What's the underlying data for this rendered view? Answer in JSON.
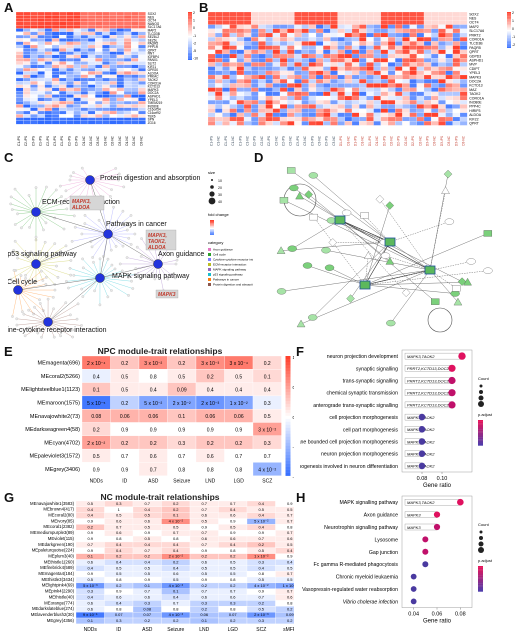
{
  "panels": {
    "A": "A",
    "B": "B",
    "C": "C",
    "D": "D",
    "E": "E",
    "F": "F",
    "G": "G",
    "H": "H"
  },
  "heatA": {
    "genes": [
      "SOX2",
      "NES",
      "OCT4",
      "NANOG",
      "SLC17A6",
      "MAP2",
      "TLCD3B",
      "SEZ6L2",
      "SEZ6L",
      "PAQR5",
      "PPP1R",
      "QPRT",
      "NNT",
      "IGFBP4",
      "PANX1",
      "SLIT2",
      "KIF21",
      "GPR20",
      "ALDOA",
      "PRKAC",
      "TAOK2",
      "CORO1A",
      "KCTD13",
      "MAPK3",
      "DOC2A",
      "ASPHD1",
      "YPEL3",
      "TMEM219",
      "INO80E",
      "C16orf54",
      "C16orf92",
      "TBX6",
      "SPN",
      "ZG16"
    ],
    "scale": [
      "2",
      "1",
      "0",
      "-1",
      "-2",
      "-5",
      "-10"
    ]
  },
  "heatB": {
    "genes": [
      "SOX2",
      "NES",
      "OCT4",
      "MAP2",
      "SLC17A6",
      "PRRT2",
      "CORO1A",
      "TLCD3B",
      "PAQR5",
      "QPRT",
      "GDPD3",
      "ASPHD1",
      "MVP",
      "CDIPT",
      "YPEL3",
      "MAPK3",
      "DOC2A",
      "KCTD13",
      "MAZ",
      "TAOK2",
      "CORO1A",
      "INO80E",
      "PPP4C",
      "HIRIP3",
      "ALDOA",
      "KIF22",
      "QPRT"
    ],
    "scale": [
      "2",
      "1",
      "0",
      "-1",
      "-2"
    ]
  },
  "networkC": {
    "nodes": [
      "Protein digestion and absorption",
      "ECM-receptor interaction",
      "Pathways in cancer",
      "p53 signaling pathway",
      "Axon guidance",
      "MAPK signaling pathway",
      "Cell cycle",
      "Cytokine-cytokine receptor interaction"
    ],
    "gene_labels": [
      "MAPK3, ALDOA",
      "MAPK3, TAOK2, ALDOA",
      "MAPK3"
    ],
    "legend_size_title": "size",
    "legend_sizes": [
      "10",
      "20",
      "30",
      "40"
    ],
    "legend_fc_title": "fold change",
    "legend_cat_title": "category",
    "legend_categories": [
      "Axon guidance",
      "Cell cycle",
      "Cytokine-cytokine receptor interaction",
      "ECM-receptor interaction",
      "MAPK signaling pathway",
      "p53 signaling pathway",
      "Pathways in cancer",
      "Protein digestion and absorption"
    ]
  },
  "heatE": {
    "title": "NPC module-trait relationships",
    "rows": [
      "MEmagenta(696)",
      "MEcoral2(5266)",
      "MElightsteelblue1(1123)",
      "MEmaroon(1575)",
      "MEnavajowhite2(73)",
      "MEdarkseagreen4(58)",
      "MEcyan(4702)",
      "MEpaleviolet3(1572)",
      "MEgrey(3406)"
    ],
    "cols": [
      "NDDs",
      "ID",
      "ASD",
      "Seizure",
      "LND",
      "LGD",
      "SCZ"
    ],
    "cells": [
      [
        "2 x 10⁻⁴",
        "0.2",
        "3 x 10⁻²",
        "0.2",
        "3 x 10⁻³",
        "3 x 10⁻⁴",
        "0.2"
      ],
      [
        "0.4",
        "0.5",
        "0.8",
        "0.5",
        "0.2",
        "0.5",
        "0.1"
      ],
      [
        "0.1",
        "0.5",
        "0.4",
        "0.09",
        "0.4",
        "0.4",
        "0.4"
      ],
      [
        "5 x 10⁻⁵",
        "0.2",
        "5 x 10⁻²",
        "2 x 10⁻²",
        "2 x 10⁻³",
        "1 x 10⁻²",
        "0.3"
      ],
      [
        "0.08",
        "0.06",
        "0.06",
        "0.1",
        "0.06",
        "0.06",
        "0.5"
      ],
      [
        "0.2",
        "0.9",
        "0.9",
        "0.9",
        "0.9",
        "0.9",
        "3 x 10⁻²"
      ],
      [
        "2 x 10⁻²",
        "0.2",
        "0.2",
        "0.3",
        "0.2",
        "0.2",
        "0.3"
      ],
      [
        "0.5",
        "0.7",
        "0.6",
        "0.7",
        "0.6",
        "0.7",
        "0.7"
      ],
      [
        "0.9",
        "0.9",
        "0.7",
        "0.8",
        "0.8",
        "0.8",
        "4 x 10⁻²"
      ]
    ],
    "corr": [
      [
        0.7,
        0.3,
        0.6,
        0.3,
        0.6,
        0.7,
        0.2
      ],
      [
        -0.1,
        0.1,
        0.0,
        0.1,
        0.3,
        0.1,
        0.2
      ],
      [
        0.3,
        0.1,
        0.1,
        0.3,
        0.1,
        0.1,
        0.1
      ],
      [
        -0.9,
        -0.3,
        -0.6,
        -0.6,
        -0.7,
        -0.6,
        -0.1
      ],
      [
        0.4,
        0.4,
        0.4,
        0.3,
        0.4,
        0.4,
        0.1
      ],
      [
        0.2,
        0.0,
        0.0,
        0.0,
        0.0,
        0.0,
        0.5
      ],
      [
        0.5,
        0.3,
        0.3,
        0.2,
        0.3,
        0.3,
        0.2
      ],
      [
        0.1,
        0.0,
        0.1,
        0.0,
        0.1,
        0.0,
        0.0
      ],
      [
        0.0,
        0.0,
        0.1,
        0.0,
        0.0,
        0.0,
        -0.5
      ]
    ],
    "scale": [
      "1",
      "0.5",
      "0",
      "-0.5",
      "-1"
    ]
  },
  "dotF": {
    "terms": [
      "neuron projection development",
      "synaptic signalling",
      "trans-synaptic signalling",
      "chemical synaptic transmission",
      "anterograde trans-synaptic signalling",
      "cell projection morphogenesis",
      "cell part morphogenesis",
      "plasma membrane bounded cell projection morphogenesis",
      "neuron projection morphogenesis",
      "cell morphogenesis involved in neuron differentiation"
    ],
    "genes": [
      "MAPK3,TAOK2",
      "PRRT2,KCTD13,DOC2A",
      "PRRT2,KCTD13,DOC2A",
      "PRRT2,KCTD13,DOC2A",
      "PRRT2,KCTD13,DOC2A",
      "MAPK3,TAOK2",
      "MAPK3,TAOK2",
      "MAPK3,TAOK2",
      "MAPK3,TAOK2",
      "MAPK3,TAOK2"
    ],
    "ratio": [
      0.12,
      0.11,
      0.11,
      0.11,
      0.11,
      0.08,
      0.08,
      0.08,
      0.08,
      0.08
    ],
    "xticks": [
      "0.08",
      "0.10"
    ],
    "xlabel": "Gene ratio",
    "count_title": "Count",
    "padj_title": "p.adjust"
  },
  "heatG": {
    "title": "NC module-trait relationships",
    "rows": [
      "MEnavajowhite1(3583)",
      "MEbrown4(417)",
      "MEcoral2(80)",
      "MEivory(85)",
      "MEcoral1(2382)",
      "MEmediumpurple3(89)",
      "MEviolet(115)",
      "MEdarkgreen(190)",
      "MEpaleturquoise(224)",
      "MEplum3(40)",
      "MEthistle1(260)",
      "MEfirebrick4(589)",
      "MEmagenta4(184)",
      "MEthistle3(3434)",
      "MElightpink4(69)",
      "MEpink4(2290)",
      "MEthistle(40)",
      "MEorange(774)",
      "MEdarkslateblue(274)",
      "MElavenderblush2(30)",
      "MEgrey(4356)"
    ],
    "cols": [
      "NDDs",
      "ID",
      "ASD",
      "Seizure",
      "LND",
      "LGD",
      "SCZ",
      "sMFR"
    ],
    "cells": [
      [
        "0.5",
        "0.3",
        "0.7",
        "0.2",
        "0.7",
        "0.7",
        "0.4",
        "0.9"
      ],
      [
        "0.4",
        "1",
        "0.4",
        "0.2",
        "0.7",
        "0.4",
        "0.5",
        "0.5"
      ],
      [
        "0.4",
        "0.5",
        "0.5",
        "0.1",
        "0.6",
        "0.6",
        "0.4",
        "0.7"
      ],
      [
        "0.9",
        "0.6",
        "0.6",
        "4 x 10⁻²",
        "0.5",
        "0.9",
        "5 x 10⁻²",
        "0.7"
      ],
      [
        "0.2",
        "0.7",
        "0.5",
        "0.5",
        "0.9",
        "0.5",
        "0.4",
        "0.8"
      ],
      [
        "0.9",
        "0.6",
        "0.9",
        "0.7",
        "0.7",
        "0.9",
        "0.9",
        "0.7"
      ],
      [
        "0.9",
        "0.8",
        "0.5",
        "0.8",
        "0.6",
        "0.6",
        "0.7",
        "0.6"
      ],
      [
        "0.7",
        "0.4",
        "0.4",
        "0.4",
        "0.7",
        "0.4",
        "0.2",
        "0.5"
      ],
      [
        "0.9",
        "0.4",
        "0.7",
        "0.4",
        "0.9",
        "0.8",
        "0.5",
        "0.4"
      ],
      [
        "0.1",
        "0.2",
        "0.2",
        "2 x 10⁻²",
        "0.2",
        "0.2",
        "1 x 10⁻²",
        "0.9"
      ],
      [
        "0.6",
        "0.4",
        "0.4",
        "0.2",
        "0.6",
        "0.5",
        "0.3",
        "0.4"
      ],
      [
        "0.4",
        "0.5",
        "0.5",
        "0.4",
        "0.5",
        "0.5",
        "0.4",
        "0.5"
      ],
      [
        "0.9",
        "0.5",
        "0.5",
        "0.6",
        "0.5",
        "0.5",
        "0.8",
        "0.7"
      ],
      [
        "0.5",
        "0.8",
        "0.9",
        "0.5",
        "0.9",
        "0.8",
        "0.5",
        "0.5"
      ],
      [
        "5 x 10⁻³",
        "0.2",
        "0.1",
        "4 x 10⁻³",
        "0.2",
        "0.2",
        "4 x 10⁻²",
        "1 x 10⁻²"
      ],
      [
        "0.3",
        "0.9",
        "0.7",
        "0.1",
        "0.7",
        "0.7",
        "0.9",
        "0.7"
      ],
      [
        "0.4",
        "0.6",
        "0.6",
        "0.4",
        "0.6",
        "0.6",
        "0.7",
        "0.6"
      ],
      [
        "0.6",
        "0.4",
        "0.3",
        "0.7",
        "0.3",
        "0.3",
        "0.2",
        "0.8"
      ],
      [
        "0.6",
        "0.8",
        "0.08",
        "0.8",
        "0.2",
        "0.8",
        "0.5",
        "0.2"
      ],
      [
        "9 x 10⁻⁵",
        "0.07",
        "0.07",
        "4 x 10⁻³",
        "0.06",
        "0.07",
        "2 x 10⁻³",
        "0.09"
      ],
      [
        "0.1",
        "0.3",
        "0.2",
        "0.2",
        "0.1",
        "0.2",
        "0.3",
        "0.2"
      ]
    ],
    "corr": [
      [
        0.1,
        0.2,
        0.1,
        0.2,
        0.1,
        0.1,
        0.2,
        0.0
      ],
      [
        0.2,
        0.0,
        0.2,
        0.3,
        0.1,
        0.2,
        0.1,
        0.1
      ],
      [
        0.2,
        0.1,
        0.2,
        0.3,
        0.1,
        0.1,
        0.2,
        0.1
      ],
      [
        0.0,
        0.1,
        0.1,
        0.6,
        0.1,
        0.0,
        -0.5,
        0.1
      ],
      [
        0.3,
        0.1,
        0.1,
        0.1,
        0.0,
        0.1,
        0.2,
        0.0
      ],
      [
        0.0,
        0.1,
        0.0,
        0.1,
        0.1,
        0.0,
        0.0,
        0.1
      ],
      [
        0.0,
        0.0,
        0.1,
        0.0,
        0.1,
        0.1,
        0.1,
        0.1
      ],
      [
        0.1,
        0.2,
        0.2,
        0.2,
        0.1,
        0.2,
        0.3,
        0.1
      ],
      [
        0.0,
        0.2,
        0.1,
        0.2,
        0.0,
        0.0,
        0.1,
        0.2
      ],
      [
        0.4,
        0.3,
        0.3,
        0.6,
        0.3,
        0.3,
        0.6,
        0.0
      ],
      [
        -0.1,
        -0.2,
        -0.2,
        -0.3,
        -0.1,
        -0.1,
        -0.2,
        -0.2
      ],
      [
        -0.2,
        -0.1,
        -0.1,
        -0.2,
        -0.1,
        -0.1,
        -0.2,
        -0.1
      ],
      [
        0.0,
        -0.1,
        -0.1,
        -0.1,
        -0.1,
        -0.1,
        0.0,
        0.1
      ],
      [
        -0.1,
        0.0,
        0.0,
        -0.1,
        0.0,
        0.0,
        -0.1,
        -0.1
      ],
      [
        -0.7,
        -0.3,
        -0.4,
        -0.7,
        -0.3,
        -0.3,
        -0.5,
        -0.6
      ],
      [
        -0.2,
        0.0,
        -0.1,
        -0.4,
        -0.1,
        -0.1,
        0.0,
        0.1
      ],
      [
        -0.2,
        -0.1,
        -0.1,
        -0.2,
        -0.1,
        -0.1,
        -0.1,
        0.1
      ],
      [
        -0.1,
        -0.2,
        -0.3,
        -0.1,
        -0.3,
        -0.3,
        -0.3,
        0.0
      ],
      [
        -0.1,
        0.0,
        -0.4,
        0.0,
        -0.3,
        0.0,
        -0.2,
        -0.3
      ],
      [
        -0.9,
        -0.4,
        -0.4,
        -0.7,
        -0.4,
        -0.4,
        -0.7,
        -0.4
      ],
      [
        -0.4,
        -0.3,
        -0.3,
        -0.3,
        -0.4,
        -0.3,
        -0.3,
        -0.3
      ]
    ],
    "scale": [
      "1",
      "0.5",
      "0",
      "-0.5",
      "-1"
    ]
  },
  "dotH": {
    "terms": [
      "MAPK signalling pathway",
      "Axon guidance",
      "Neurotrophin signalling pathway",
      "Lysosome",
      "Gap junction",
      "Fc gamma R-mediated phagocytosis",
      "Chronic myeloid leukaemia",
      "Vasopressin-regulated water reabsorption",
      "Vibrio cholerae infection"
    ],
    "genes": [
      "MAPK3,TAOK2",
      "MAPK3",
      "MAPK3",
      "",
      "",
      "",
      "",
      "",
      ""
    ],
    "ratio": [
      0.08,
      0.06,
      0.06,
      0.05,
      0.05,
      0.05,
      0.04,
      0.04,
      0.04
    ],
    "xticks": [
      "0.04",
      "0.06",
      "0.08"
    ],
    "xlabel": "Gene ratio",
    "count_title": "Count",
    "padj_title": "p.adjust"
  }
}
